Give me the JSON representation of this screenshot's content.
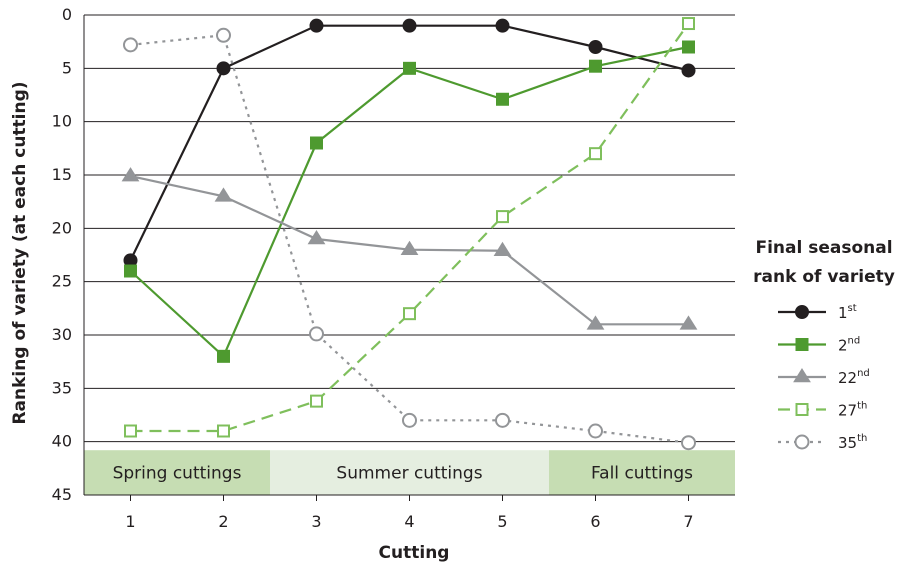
{
  "chart_data": {
    "type": "line",
    "x": [
      1,
      2,
      3,
      4,
      5,
      6,
      7
    ],
    "xlabel": "Cutting",
    "ylabel": "Ranking of variety (at each cutting)",
    "ylim": [
      45,
      0
    ],
    "y_inverted": true,
    "yticks": [
      0,
      5,
      10,
      15,
      20,
      25,
      30,
      35,
      40,
      45
    ],
    "grid": "horizontal",
    "legend": {
      "title": [
        "Final seasonal",
        "rank of variety"
      ],
      "placement": "right"
    },
    "seasons": [
      {
        "label": "Spring cuttings",
        "from": 0.5,
        "to": 2.5,
        "color": "#c6ddb3"
      },
      {
        "label": "Summer cuttings",
        "from": 2.5,
        "to": 5.5,
        "color": "#e5eee0"
      },
      {
        "label": "Fall cuttings",
        "from": 5.5,
        "to": 7.5,
        "color": "#c6ddb3"
      }
    ],
    "series": [
      {
        "name": "1",
        "sup": "st",
        "color": "#231f20",
        "dash": "",
        "marker": "circle",
        "filled": true,
        "values": [
          23,
          5,
          1,
          1,
          1,
          3,
          5.2
        ]
      },
      {
        "name": "2",
        "sup": "nd",
        "color": "#4e9a2f",
        "dash": "",
        "marker": "square",
        "filled": true,
        "values": [
          24,
          32,
          12,
          5,
          7.9,
          4.8,
          3
        ]
      },
      {
        "name": "22",
        "sup": "nd",
        "color": "#939598",
        "dash": "",
        "marker": "triangle",
        "filled": true,
        "values": [
          15.1,
          17,
          21,
          22,
          22.1,
          29,
          29
        ]
      },
      {
        "name": "27",
        "sup": "th",
        "color": "#7fbf5c",
        "dash": "12,7",
        "marker": "square",
        "filled": false,
        "values": [
          39,
          39,
          36.2,
          28,
          18.9,
          13,
          0.8
        ]
      },
      {
        "name": "35",
        "sup": "th",
        "color": "#939598",
        "dash": "3,5",
        "marker": "circle",
        "filled": false,
        "values": [
          2.8,
          1.9,
          29.9,
          38,
          38,
          39,
          40.1
        ]
      }
    ]
  }
}
